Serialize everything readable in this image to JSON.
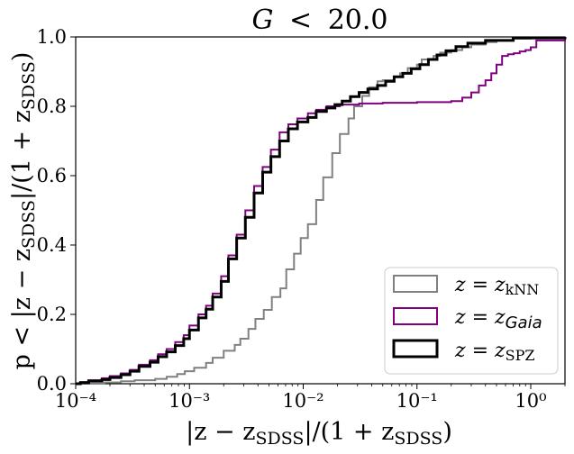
{
  "chart_data": {
    "type": "step",
    "title": "G < 20.0",
    "xlabel": "|z − z_SDSS|/(1 + z_SDSS)",
    "ylabel": "p < |z − z_SDSS|/(1 + z_SDSS)",
    "xscale": "log",
    "xlim": [
      0.0001,
      2.0
    ],
    "ylim": [
      0.0,
      1.0
    ],
    "x_ticks": [
      0.0001,
      0.001,
      0.01,
      0.1,
      1
    ],
    "x_tick_labels": [
      "10⁻⁴",
      "10⁻³",
      "10⁻²",
      "10⁻¹",
      "10⁰"
    ],
    "y_ticks": [
      0.0,
      0.2,
      0.4,
      0.6,
      0.8,
      1.0
    ],
    "y_tick_labels": [
      "0.0",
      "0.2",
      "0.4",
      "0.6",
      "0.8",
      "1.0"
    ],
    "legend_position": "lower-right",
    "series": [
      {
        "name": "z = z_kNN",
        "color": "#808080",
        "line_width": "medium",
        "points": [
          [
            0.0001,
            0.0
          ],
          [
            0.00013,
            0.002
          ],
          [
            0.00018,
            0.004
          ],
          [
            0.00025,
            0.007
          ],
          [
            0.00033,
            0.01
          ],
          [
            0.0005,
            0.014
          ],
          [
            0.00063,
            0.02
          ],
          [
            0.00078,
            0.028
          ],
          [
            0.00091,
            0.036
          ],
          [
            0.0011,
            0.046
          ],
          [
            0.0014,
            0.06
          ],
          [
            0.0016,
            0.075
          ],
          [
            0.002,
            0.095
          ],
          [
            0.0025,
            0.112
          ],
          [
            0.0028,
            0.13
          ],
          [
            0.0033,
            0.158
          ],
          [
            0.0038,
            0.187
          ],
          [
            0.0045,
            0.213
          ],
          [
            0.0053,
            0.25
          ],
          [
            0.0063,
            0.275
          ],
          [
            0.0071,
            0.33
          ],
          [
            0.0083,
            0.375
          ],
          [
            0.0095,
            0.42
          ],
          [
            0.011,
            0.46
          ],
          [
            0.013,
            0.53
          ],
          [
            0.015,
            0.595
          ],
          [
            0.018,
            0.665
          ],
          [
            0.021,
            0.72
          ],
          [
            0.025,
            0.765
          ],
          [
            0.028,
            0.8
          ],
          [
            0.033,
            0.83
          ],
          [
            0.038,
            0.855
          ],
          [
            0.045,
            0.872
          ],
          [
            0.05,
            0.875
          ],
          [
            0.063,
            0.885
          ],
          [
            0.071,
            0.895
          ],
          [
            0.083,
            0.91
          ],
          [
            0.1,
            0.92
          ],
          [
            0.11,
            0.935
          ],
          [
            0.14,
            0.945
          ],
          [
            0.16,
            0.955
          ],
          [
            0.2,
            0.962
          ],
          [
            0.25,
            0.97
          ],
          [
            0.3,
            0.978
          ],
          [
            0.4,
            0.985
          ],
          [
            0.5,
            0.99
          ],
          [
            0.71,
            0.995
          ],
          [
            1.0,
            0.999
          ],
          [
            2.0,
            1.0
          ]
        ]
      },
      {
        "name": "z = z_Gaia",
        "color": "#800080",
        "line_width": "medium",
        "points": [
          [
            0.0001,
            0.0
          ],
          [
            0.00011,
            0.005
          ],
          [
            0.00013,
            0.01
          ],
          [
            0.00017,
            0.016
          ],
          [
            0.0002,
            0.022
          ],
          [
            0.00025,
            0.03
          ],
          [
            0.0003,
            0.04
          ],
          [
            0.00036,
            0.055
          ],
          [
            0.00045,
            0.068
          ],
          [
            0.00053,
            0.085
          ],
          [
            0.00063,
            0.1
          ],
          [
            0.00075,
            0.12
          ],
          [
            0.00089,
            0.14
          ],
          [
            0.001,
            0.168
          ],
          [
            0.0012,
            0.2
          ],
          [
            0.0014,
            0.225
          ],
          [
            0.0016,
            0.26
          ],
          [
            0.0019,
            0.31
          ],
          [
            0.0022,
            0.37
          ],
          [
            0.0026,
            0.43
          ],
          [
            0.0031,
            0.5
          ],
          [
            0.0037,
            0.57
          ],
          [
            0.0044,
            0.625
          ],
          [
            0.0052,
            0.675
          ],
          [
            0.0062,
            0.725
          ],
          [
            0.0074,
            0.748
          ],
          [
            0.0089,
            0.765
          ],
          [
            0.011,
            0.78
          ],
          [
            0.013,
            0.79
          ],
          [
            0.016,
            0.8
          ],
          [
            0.021,
            0.805
          ],
          [
            0.031,
            0.808
          ],
          [
            0.05,
            0.81
          ],
          [
            0.1,
            0.812
          ],
          [
            0.2,
            0.815
          ],
          [
            0.25,
            0.825
          ],
          [
            0.3,
            0.84
          ],
          [
            0.35,
            0.86
          ],
          [
            0.4,
            0.875
          ],
          [
            0.45,
            0.895
          ],
          [
            0.5,
            0.92
          ],
          [
            0.56,
            0.945
          ],
          [
            0.63,
            0.95
          ],
          [
            0.71,
            0.953
          ],
          [
            0.8,
            0.958
          ],
          [
            0.9,
            0.962
          ],
          [
            1.0,
            0.97
          ],
          [
            1.12,
            0.99
          ],
          [
            2.0,
            1.0
          ]
        ]
      },
      {
        "name": "z = z_SPZ",
        "color": "#000000",
        "line_width": "thick",
        "points": [
          [
            0.0001,
            0.0
          ],
          [
            0.00011,
            0.003
          ],
          [
            0.00013,
            0.008
          ],
          [
            0.00017,
            0.012
          ],
          [
            0.0002,
            0.018
          ],
          [
            0.00025,
            0.026
          ],
          [
            0.0003,
            0.036
          ],
          [
            0.00036,
            0.05
          ],
          [
            0.00045,
            0.062
          ],
          [
            0.00053,
            0.078
          ],
          [
            0.00063,
            0.092
          ],
          [
            0.00075,
            0.11
          ],
          [
            0.00089,
            0.13
          ],
          [
            0.001,
            0.155
          ],
          [
            0.0012,
            0.19
          ],
          [
            0.0014,
            0.215
          ],
          [
            0.0016,
            0.25
          ],
          [
            0.0019,
            0.295
          ],
          [
            0.0022,
            0.36
          ],
          [
            0.0026,
            0.42
          ],
          [
            0.0031,
            0.48
          ],
          [
            0.0037,
            0.55
          ],
          [
            0.0044,
            0.61
          ],
          [
            0.0052,
            0.655
          ],
          [
            0.0062,
            0.7
          ],
          [
            0.0074,
            0.735
          ],
          [
            0.0089,
            0.755
          ],
          [
            0.011,
            0.768
          ],
          [
            0.013,
            0.785
          ],
          [
            0.016,
            0.795
          ],
          [
            0.019,
            0.805
          ],
          [
            0.022,
            0.815
          ],
          [
            0.026,
            0.828
          ],
          [
            0.031,
            0.84
          ],
          [
            0.037,
            0.85
          ],
          [
            0.045,
            0.86
          ],
          [
            0.053,
            0.872
          ],
          [
            0.063,
            0.885
          ],
          [
            0.075,
            0.895
          ],
          [
            0.089,
            0.908
          ],
          [
            0.106,
            0.92
          ],
          [
            0.126,
            0.935
          ],
          [
            0.15,
            0.948
          ],
          [
            0.18,
            0.96
          ],
          [
            0.22,
            0.972
          ],
          [
            0.28,
            0.982
          ],
          [
            0.4,
            0.99
          ],
          [
            0.7,
            0.997
          ],
          [
            2.0,
            1.0
          ]
        ]
      }
    ]
  },
  "legend": {
    "items": [
      {
        "prefix": "z = z",
        "sub": "kNN",
        "sub_style": "roman"
      },
      {
        "prefix": "z = z",
        "sub": "Gaia",
        "sub_style": "italic"
      },
      {
        "prefix": "z = z",
        "sub": "SPZ",
        "sub_style": "roman"
      }
    ]
  },
  "title_parts": {
    "lhs": "G",
    "op": "<",
    "rhs": "20.0"
  },
  "xlabel_parts": {
    "a": "|z − z",
    "b": "SDSS",
    "c": "|/(1 + z",
    "d": "SDSS",
    "e": ")"
  },
  "ylabel_parts": {
    "a": "p < |z − z",
    "b": "SDSS",
    "c": "|/(1 + z",
    "d": "SDSS",
    "e": ")"
  }
}
